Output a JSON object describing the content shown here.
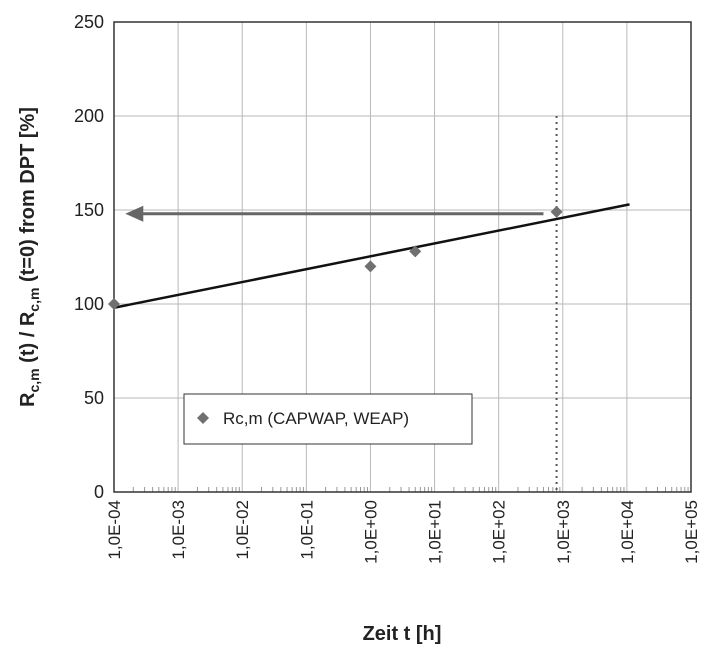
{
  "chart_data": {
    "type": "scatter",
    "x_scale": "log",
    "xlim": [
      0.0001,
      100000
    ],
    "ylim": [
      0,
      250
    ],
    "xlabel": "Zeit t [h]",
    "ylabel": {
      "parts": [
        {
          "t": "R",
          "sub": false
        },
        {
          "t": "c,m",
          "sub": true
        },
        {
          "t": " (t) / R",
          "sub": false
        },
        {
          "t": "c,m",
          "sub": true
        },
        {
          "t": " (t=0) from DPT [%]",
          "sub": false
        }
      ]
    },
    "y_ticks": [
      {
        "value": 0,
        "label": "0"
      },
      {
        "value": 50,
        "label": "50"
      },
      {
        "value": 100,
        "label": "100"
      },
      {
        "value": 150,
        "label": "150"
      },
      {
        "value": 200,
        "label": "200"
      },
      {
        "value": 250,
        "label": "250"
      }
    ],
    "x_ticks": [
      {
        "value": 0.0001,
        "label": "1,0E-04"
      },
      {
        "value": 0.001,
        "label": "1,0E-03"
      },
      {
        "value": 0.01,
        "label": "1,0E-02"
      },
      {
        "value": 0.1,
        "label": "1,0E-01"
      },
      {
        "value": 1,
        "label": "1,0E+00"
      },
      {
        "value": 10,
        "label": "1,0E+01"
      },
      {
        "value": 100,
        "label": "1,0E+02"
      },
      {
        "value": 1000,
        "label": "1,0E+03"
      },
      {
        "value": 10000,
        "label": "1,0E+04"
      },
      {
        "value": 100000,
        "label": "1,0E+05"
      }
    ],
    "grid": true,
    "series": [
      {
        "name": "Rc,m (CAPWAP, WEAP)",
        "marker": "diamond",
        "color": "#707070",
        "points": [
          {
            "x": 0.0001,
            "y": 100
          },
          {
            "x": 1,
            "y": 120
          },
          {
            "x": 5,
            "y": 128
          },
          {
            "x": 800,
            "y": 149
          }
        ]
      }
    ],
    "trendline": {
      "color": "#111111",
      "from": {
        "x": 0.0001,
        "y": 98
      },
      "to": {
        "x": 11000,
        "y": 153
      }
    },
    "reference_line": {
      "x": 800,
      "y_from": 0,
      "y_to": 200,
      "style": "dotted",
      "color": "#555555"
    },
    "arrow": {
      "from": {
        "x": 500,
        "y": 148
      },
      "to": {
        "x": 0.00015,
        "y": 148
      },
      "color": "#666666"
    },
    "legend": {
      "placement": "lower-left",
      "text": "Rc,m (CAPWAP, WEAP)"
    }
  }
}
